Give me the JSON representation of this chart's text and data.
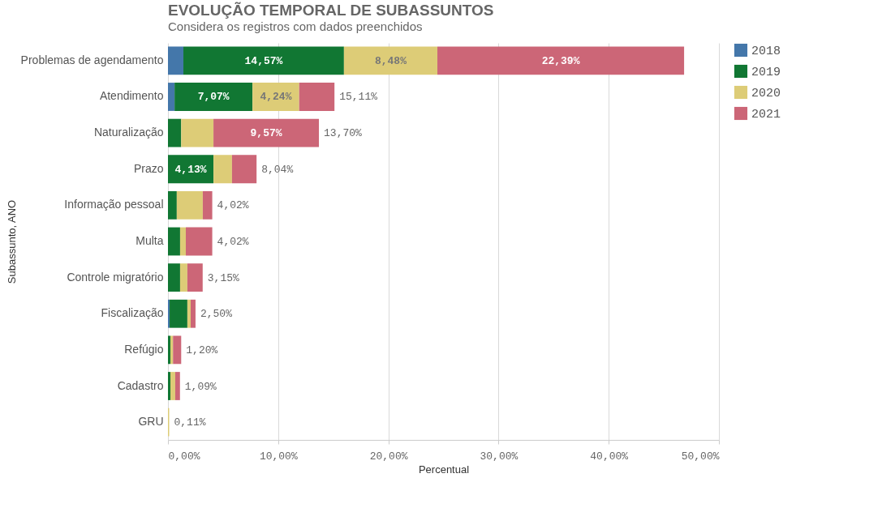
{
  "chart_data": {
    "type": "bar",
    "orientation": "horizontal",
    "stacked": true,
    "title": "EVOLUÇÃO TEMPORAL DE SUBASSUNTOS",
    "subtitle": "Considera os registros com dados preenchidos",
    "xlabel": "Percentual",
    "ylabel": "Subassunto, ANO",
    "categories": [
      "Problemas de agendamento",
      "Atendimento",
      "Naturalização",
      "Prazo",
      "Informação pessoal",
      "Multa",
      "Controle migratório",
      "Fiscalização",
      "Refúgio",
      "Cadastro",
      "GRU"
    ],
    "series": [
      {
        "name": "2018",
        "color": "#4477aa",
        "values": [
          1.4,
          0.6,
          0,
          0,
          0,
          0,
          0,
          0.15,
          0,
          0,
          0
        ]
      },
      {
        "name": "2019",
        "color": "#117733",
        "values": [
          14.57,
          7.07,
          1.2,
          4.13,
          0.8,
          1.1,
          1.1,
          1.61,
          0.22,
          0.22,
          0
        ],
        "value_labels": [
          "14,57%",
          "7,07%",
          null,
          "4,13%",
          null,
          null,
          null,
          null,
          null,
          null,
          null
        ]
      },
      {
        "name": "2020",
        "color": "#ddcc77",
        "values": [
          8.48,
          4.24,
          2.93,
          1.68,
          2.36,
          0.52,
          0.66,
          0.3,
          0.24,
          0.44,
          0.11
        ],
        "value_labels": [
          "8,48%",
          "4,24%",
          null,
          null,
          null,
          null,
          null,
          null,
          null,
          null,
          null
        ]
      },
      {
        "name": "2021",
        "color": "#cc6677",
        "values": [
          22.39,
          3.2,
          9.57,
          2.23,
          0.86,
          2.4,
          1.39,
          0.44,
          0.74,
          0.43,
          0
        ],
        "value_labels": [
          "22,39%",
          null,
          "9,57%",
          null,
          null,
          null,
          null,
          null,
          null,
          null,
          null
        ]
      }
    ],
    "totals": [
      null,
      "15,11%",
      "13,70%",
      "8,04%",
      "4,02%",
      "4,02%",
      "3,15%",
      "2,50%",
      "1,20%",
      "1,09%",
      "0,11%"
    ],
    "xlim": [
      0,
      50
    ],
    "xticks": [
      {
        "value": 0,
        "label": "0,00%"
      },
      {
        "value": 10,
        "label": "10,00%"
      },
      {
        "value": 20,
        "label": "20,00%"
      },
      {
        "value": 30,
        "label": "30,00%"
      },
      {
        "value": 40,
        "label": "40,00%"
      },
      {
        "value": 50,
        "label": "50,00%"
      }
    ],
    "grid": "x",
    "legend": "top right"
  }
}
